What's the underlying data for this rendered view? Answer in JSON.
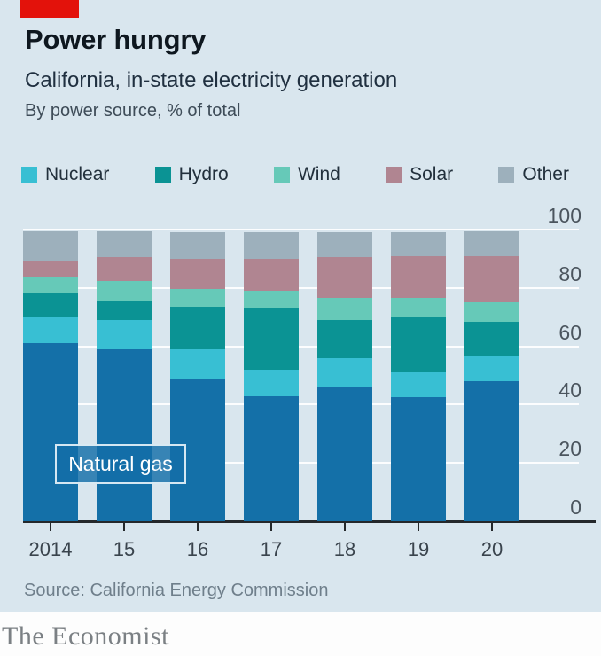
{
  "header": {
    "title": "Power hungry",
    "subtitle": "California, in-state electricity generation",
    "note": "By power source, % of total"
  },
  "legend": [
    {
      "label": "Nuclear",
      "color": "#38bfd3"
    },
    {
      "label": "Hydro",
      "color": "#0b9394"
    },
    {
      "label": "Wind",
      "color": "#66c9b8"
    },
    {
      "label": "Solar",
      "color": "#b08591"
    },
    {
      "label": "Other",
      "color": "#9db0bc"
    }
  ],
  "chart_data": {
    "type": "bar",
    "stacked": true,
    "title": "Power hungry",
    "subtitle": "California, in-state electricity generation",
    "units": "% of total",
    "categories": [
      "2014",
      "15",
      "16",
      "17",
      "18",
      "19",
      "20"
    ],
    "series": [
      {
        "name": "Natural gas",
        "color": "#1470a8",
        "values": [
          61,
          59,
          49,
          43,
          46,
          42.5,
          48
        ]
      },
      {
        "name": "Nuclear",
        "color": "#38bfd3",
        "values": [
          9,
          10,
          10,
          9,
          10,
          8.5,
          8.5
        ]
      },
      {
        "name": "Hydro",
        "color": "#0b9394",
        "values": [
          8.5,
          6.5,
          14.5,
          21,
          13,
          19,
          12
        ]
      },
      {
        "name": "Wind",
        "color": "#66c9b8",
        "values": [
          5,
          7,
          6,
          6,
          7.5,
          6.5,
          6.5
        ]
      },
      {
        "name": "Solar",
        "color": "#b08591",
        "values": [
          6,
          8,
          10.5,
          11,
          14,
          14.5,
          16
        ]
      },
      {
        "name": "Other",
        "color": "#9db0bc",
        "values": [
          10,
          9,
          9,
          9,
          8.5,
          8,
          8.5
        ]
      }
    ],
    "ylim": [
      0,
      100
    ],
    "yticks": [
      0,
      20,
      40,
      60,
      80,
      100
    ],
    "grid": "horizontal-white",
    "legend_position": "top",
    "bar_label": "Natural gas"
  },
  "footer": {
    "source": "Source: California Energy Commission",
    "brand": "The Economist"
  },
  "colors": {
    "background": "#d9e6ee",
    "accent_red": "#e3120b",
    "axis_line": "#24282b",
    "text_dark": "#0e171f",
    "text_gray": "#4b555e"
  }
}
